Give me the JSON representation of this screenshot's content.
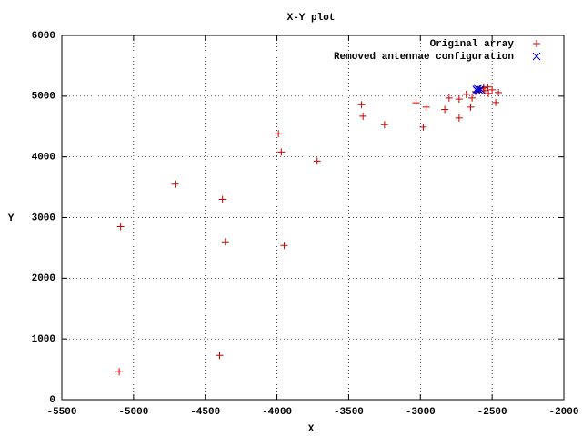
{
  "chart_data": {
    "type": "scatter",
    "title": "X-Y plot",
    "x_label": "X",
    "y_label": "Y",
    "xlim": [
      -5500,
      -2000
    ],
    "xticks": [
      -5500,
      -5000,
      -4500,
      -4000,
      -3500,
      -3000,
      -2500,
      -2000
    ],
    "ylim": [
      0,
      6000
    ],
    "yticks": [
      0,
      1000,
      2000,
      3000,
      4000,
      5000,
      6000
    ],
    "grid": true,
    "legend": "top-right",
    "series": [
      {
        "name": "Original array",
        "color": "#cc0000",
        "marker": "plus",
        "x": [
          -5100,
          -5090,
          -4710,
          -4380,
          -4360,
          -4400,
          -3990,
          -3970,
          -3950,
          -3720,
          -3410,
          -3400,
          -3250,
          -3030,
          -2960,
          -2980,
          -2830,
          -2800,
          -2730,
          -2730,
          -2680,
          -2650,
          -2640,
          -2615,
          -2583,
          -2552,
          -2526,
          -2500,
          -2475,
          -2456,
          -2590,
          -2560,
          -2530
        ],
        "values": [
          460,
          2850,
          3550,
          3300,
          2600,
          730,
          4380,
          4080,
          2540,
          3930,
          4860,
          4670,
          4530,
          4890,
          4820,
          4490,
          4780,
          4970,
          4950,
          4640,
          5030,
          4820,
          4970,
          5075,
          5120,
          5090,
          5045,
          5105,
          4895,
          5060,
          5090,
          5135,
          5150
        ]
      },
      {
        "name": "Removed antennae configuration",
        "color": "#0000cc",
        "marker": "cross",
        "x": [
          -2610,
          -2600,
          -2590,
          -2580,
          -2605
        ],
        "values": [
          5110,
          5120,
          5100,
          5110,
          5090
        ]
      }
    ]
  }
}
